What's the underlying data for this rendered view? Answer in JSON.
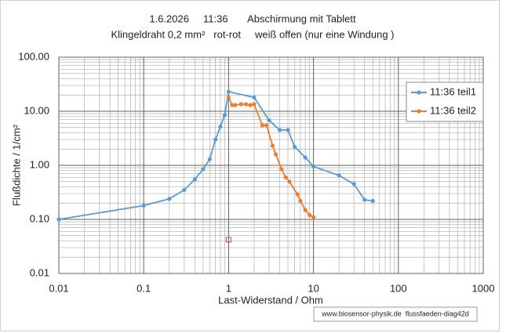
{
  "chart_data": {
    "type": "line",
    "title": "1.6.2026     11:36       Abschirmung mit Tablett",
    "subtitle": "Klingeldraht 0,2 mm²   rot-rot     weiß offen (nur eine Windung )",
    "x_label": "Last-Widerstand / Ohm",
    "y_label": "Flußdichte / 1/cm²",
    "annotation": "www.biosensor-physik.de  flussfaeden-diag42d",
    "x_log": true,
    "y_log": true,
    "grid": true,
    "legend": "right",
    "xlim": [
      0.01,
      1000
    ],
    "xticks": [
      0.01,
      0.1,
      1,
      10,
      100,
      1000
    ],
    "ylim": [
      0.01,
      100
    ],
    "yticks": [
      {
        "value": 0.01,
        "label": "0.01"
      },
      {
        "value": 0.1,
        "label": "0.10"
      },
      {
        "value": 1,
        "label": "1.00"
      },
      {
        "value": 10,
        "label": "10.00"
      },
      {
        "value": 100,
        "label": "100.00"
      }
    ],
    "series": [
      {
        "name": "11:36 teil1",
        "color": "#5b9bd5",
        "x": [
          0.01,
          0.1,
          0.2,
          0.3,
          0.4,
          0.5,
          0.6,
          0.7,
          0.8,
          0.9,
          1.0,
          2.0,
          3.0,
          4.0,
          5.0,
          6.0,
          8.0,
          10,
          20,
          30,
          40,
          50
        ],
        "values": [
          0.1,
          0.18,
          0.24,
          0.35,
          0.55,
          0.85,
          1.3,
          3.0,
          5.2,
          8.5,
          23,
          18,
          6.8,
          4.5,
          4.5,
          2.2,
          1.4,
          0.95,
          0.65,
          0.45,
          0.23,
          0.22
        ]
      },
      {
        "name": "11:36 teil2",
        "color": "#ed7d31",
        "x": [
          1.0,
          1.1,
          1.2,
          1.4,
          1.6,
          1.8,
          2.0,
          2.5,
          2.8,
          3.3,
          3.6,
          4.2,
          4.7,
          5.2,
          6.5,
          7.0,
          8.0,
          9.0,
          10
        ],
        "values": [
          18,
          13,
          13,
          13.5,
          13.5,
          13,
          13.5,
          5.5,
          5.5,
          2.3,
          1.6,
          0.85,
          0.6,
          0.5,
          0.29,
          0.22,
          0.15,
          0.12,
          0.11
        ]
      }
    ],
    "extra_points": [
      {
        "x": 1,
        "y": 0.042,
        "color": "#c0504d"
      }
    ]
  }
}
